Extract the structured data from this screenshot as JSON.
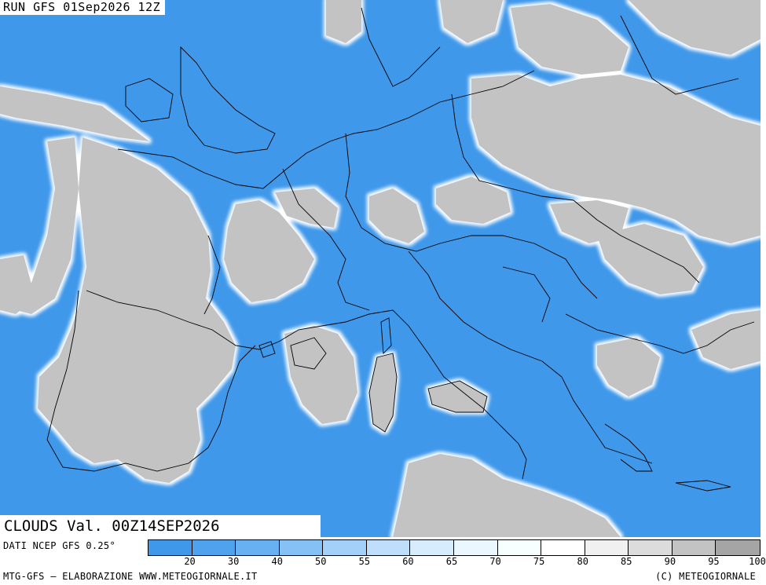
{
  "header": {
    "run_label": "RUN GFS 01Sep2026 12Z"
  },
  "map": {
    "valid_label": "CLOUDS Val. 00Z14SEP2026",
    "colors": {
      "clear_sky": "#3f98ea",
      "cloud": "#c3c3c3",
      "cloud_edge": "#ffffff",
      "borders": "#000000"
    }
  },
  "legend": {
    "source_label": "DATI NCEP GFS 0.25°",
    "categories": [
      "20",
      "30",
      "40",
      "50",
      "55",
      "60",
      "65",
      "70",
      "75",
      "80",
      "85",
      "90",
      "95",
      "100"
    ],
    "colors": [
      "#3f98ea",
      "#4fa2ee",
      "#67b0f2",
      "#86c1f6",
      "#a3d0f8",
      "#bfdefb",
      "#d7ecfc",
      "#ebf7fe",
      "#f7ffff",
      "#ffffff",
      "#f0f0f0",
      "#dcdcdc",
      "#c3c3c3",
      "#a5a5a5"
    ]
  },
  "footer": {
    "credit_left": "MTG-GFS – ELABORAZIONE WWW.METEOGIORNALE.IT",
    "credit_right": "(C) METEOGIORNALE"
  }
}
